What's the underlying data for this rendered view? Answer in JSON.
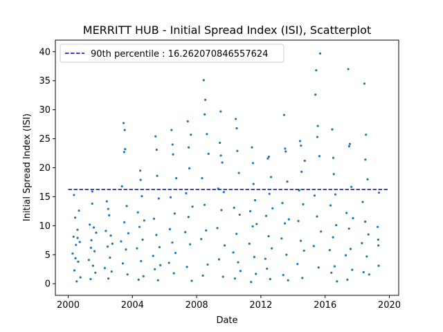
{
  "chart_data": {
    "type": "scatter",
    "title": "MERRITT HUB - Initial Spread Index (ISI), Scatterplot",
    "xlabel": "Date",
    "ylabel": "Initial Spread Index (ISI)",
    "xlim": [
      "1999-03-15",
      "2020-08-01"
    ],
    "ylim": [
      -2,
      42
    ],
    "xticks": [
      "2000",
      "2004",
      "2008",
      "2012",
      "2016",
      "2020"
    ],
    "yticks": [
      "0",
      "5",
      "10",
      "15",
      "20",
      "25",
      "30",
      "35",
      "40"
    ],
    "marker_color": "#1f77b4",
    "grid": false,
    "legend": {
      "location": "upper left",
      "entries": [
        {
          "label": "90th percentile : 16.262070846557624",
          "style": "dashed",
          "color": "#0000cc"
        }
      ]
    },
    "reference_line": {
      "name": "90th percentile : 16.262070846557624",
      "y": 16.262070846557624,
      "x_start": "2000-01-01",
      "x_end": "2019-12-31"
    },
    "series": [
      {
        "points": [
          [
            "2000-04-10",
            5.2
          ],
          [
            "2000-05-02",
            8.1
          ],
          [
            "2000-05-20",
            2.3
          ],
          [
            "2000-06-08",
            11.4
          ],
          [
            "2000-06-25",
            6.7
          ],
          [
            "2000-07-12",
            0.4
          ],
          [
            "2000-07-30",
            9.3
          ],
          [
            "2000-08-15",
            3.8
          ],
          [
            "2000-09-02",
            12.6
          ],
          [
            "2000-09-20",
            7.2
          ],
          [
            "2000-10-05",
            1.1
          ],
          [
            "2000-05-12",
            15.3
          ],
          [
            "2000-06-15",
            4.4
          ],
          [
            "2000-08-02",
            7.9
          ],
          [
            "2001-04-15",
            4.1
          ],
          [
            "2001-05-05",
            10.2
          ],
          [
            "2001-05-25",
            0.8
          ],
          [
            "2001-06-12",
            7.5
          ],
          [
            "2001-06-30",
            13.8
          ],
          [
            "2001-07-18",
            3.1
          ],
          [
            "2001-08-05",
            9.7
          ],
          [
            "2001-08-22",
            5.6
          ],
          [
            "2001-09-10",
            1.9
          ],
          [
            "2001-09-28",
            8.8
          ],
          [
            "2001-07-01",
            15.9
          ],
          [
            "2001-06-01",
            6.2
          ],
          [
            "2002-04-12",
            2.7
          ],
          [
            "2002-05-06",
            9.1
          ],
          [
            "2002-05-28",
            14.2
          ],
          [
            "2002-06-15",
            6.4
          ],
          [
            "2002-07-03",
            0.9
          ],
          [
            "2002-07-21",
            11.8
          ],
          [
            "2002-08-08",
            4.5
          ],
          [
            "2002-08-26",
            8.3
          ],
          [
            "2002-09-14",
            2.1
          ],
          [
            "2002-10-01",
            6.9
          ],
          [
            "2002-06-28",
            12.9
          ],
          [
            "2003-04-18",
            7.3
          ],
          [
            "2003-05-08",
            16.8
          ],
          [
            "2003-05-27",
            3.5
          ],
          [
            "2003-06-14",
            27.7
          ],
          [
            "2003-07-01",
            10.6
          ],
          [
            "2003-07-19",
            23.2
          ],
          [
            "2003-08-06",
            5.9
          ],
          [
            "2003-08-24",
            13.4
          ],
          [
            "2003-09-11",
            1.6
          ],
          [
            "2003-09-29",
            8.7
          ],
          [
            "2003-06-25",
            22.7
          ],
          [
            "2003-07-10",
            26.5
          ],
          [
            "2004-04-14",
            6.1
          ],
          [
            "2004-05-03",
            12.3
          ],
          [
            "2004-05-21",
            0.7
          ],
          [
            "2004-06-09",
            9.8
          ],
          [
            "2004-06-27",
            19.5
          ],
          [
            "2004-07-15",
            3.9
          ],
          [
            "2004-08-02",
            15.1
          ],
          [
            "2004-08-20",
            7.6
          ],
          [
            "2004-09-07",
            1.3
          ],
          [
            "2004-09-25",
            10.9
          ],
          [
            "2004-07-05",
            17.9
          ],
          [
            "2005-04-16",
            4.8
          ],
          [
            "2005-05-05",
            11.2
          ],
          [
            "2005-05-24",
            2.5
          ],
          [
            "2005-06-11",
            25.4
          ],
          [
            "2005-06-29",
            8.4
          ],
          [
            "2005-07-17",
            18.6
          ],
          [
            "2005-08-04",
            0.6
          ],
          [
            "2005-08-22",
            14.7
          ],
          [
            "2005-09-09",
            6.3
          ],
          [
            "2005-09-27",
            3.2
          ],
          [
            "2005-07-05",
            23.1
          ],
          [
            "2006-04-13",
            3.6
          ],
          [
            "2006-05-02",
            9.4
          ],
          [
            "2006-05-20",
            14.9
          ],
          [
            "2006-06-08",
            26.5
          ],
          [
            "2006-06-26",
            7.1
          ],
          [
            "2006-07-14",
            22.3
          ],
          [
            "2006-08-01",
            1.8
          ],
          [
            "2006-08-19",
            12.1
          ],
          [
            "2006-09-06",
            5.3
          ],
          [
            "2006-09-24",
            18.2
          ],
          [
            "2006-07-01",
            24.0
          ],
          [
            "2007-04-17",
            8.9
          ],
          [
            "2007-05-06",
            15.6
          ],
          [
            "2007-05-25",
            2.9
          ],
          [
            "2007-06-12",
            28.0
          ],
          [
            "2007-06-30",
            11.5
          ],
          [
            "2007-07-18",
            19.9
          ],
          [
            "2007-08-05",
            6.8
          ],
          [
            "2007-08-23",
            25.7
          ],
          [
            "2007-09-10",
            0.5
          ],
          [
            "2007-09-28",
            13.3
          ],
          [
            "2007-07-05",
            23.5
          ],
          [
            "2008-04-14",
            7.7
          ],
          [
            "2008-05-03",
            18.2
          ],
          [
            "2008-05-22",
            1.4
          ],
          [
            "2008-06-10",
            35.1
          ],
          [
            "2008-06-28",
            13.6
          ],
          [
            "2008-07-16",
            31.7
          ],
          [
            "2008-08-03",
            9.2
          ],
          [
            "2008-08-21",
            25.8
          ],
          [
            "2008-09-08",
            3.3
          ],
          [
            "2008-09-26",
            22.4
          ],
          [
            "2008-07-01",
            29.2
          ],
          [
            "2009-04-16",
            9.6
          ],
          [
            "2009-05-05",
            16.4
          ],
          [
            "2009-05-24",
            4.2
          ],
          [
            "2009-06-12",
            24.3
          ],
          [
            "2009-06-30",
            29.7
          ],
          [
            "2009-07-18",
            12.7
          ],
          [
            "2009-08-05",
            20.9
          ],
          [
            "2009-08-23",
            1.2
          ],
          [
            "2009-09-10",
            15.8
          ],
          [
            "2009-09-28",
            6.6
          ],
          [
            "2009-07-05",
            22.1
          ],
          [
            "2010-04-13",
            5.4
          ],
          [
            "2010-05-02",
            13.1
          ],
          [
            "2010-05-20",
            0.9
          ],
          [
            "2010-06-08",
            28.4
          ],
          [
            "2010-06-26",
            8.6
          ],
          [
            "2010-07-14",
            22.9
          ],
          [
            "2010-08-01",
            3.7
          ],
          [
            "2010-08-19",
            19.1
          ],
          [
            "2010-09-06",
            11.9
          ],
          [
            "2010-09-24",
            2.2
          ],
          [
            "2010-07-01",
            26.8
          ],
          [
            "2011-04-15",
            6.9
          ],
          [
            "2011-05-04",
            12.5
          ],
          [
            "2011-05-23",
            0.3
          ],
          [
            "2011-06-11",
            23.5
          ],
          [
            "2011-06-29",
            9.9
          ],
          [
            "2011-07-17",
            17.2
          ],
          [
            "2011-08-04",
            4.6
          ],
          [
            "2011-08-22",
            14.4
          ],
          [
            "2011-09-09",
            1.7
          ],
          [
            "2011-09-27",
            10.3
          ],
          [
            "2011-07-05",
            20.8
          ],
          [
            "2012-04-12",
            4.3
          ],
          [
            "2012-05-01",
            11.7
          ],
          [
            "2012-05-19",
            2.6
          ],
          [
            "2012-06-07",
            21.6
          ],
          [
            "2012-06-25",
            8.2
          ],
          [
            "2012-07-13",
            15.5
          ],
          [
            "2012-07-31",
            0.8
          ],
          [
            "2012-08-18",
            18.4
          ],
          [
            "2012-09-05",
            6.1
          ],
          [
            "2012-09-23",
            13.0
          ],
          [
            "2012-07-01",
            21.9
          ],
          [
            "2013-04-16",
            7.8
          ],
          [
            "2013-05-05",
            13.9
          ],
          [
            "2013-05-24",
            1.5
          ],
          [
            "2013-06-12",
            29.1
          ],
          [
            "2013-06-30",
            10.4
          ],
          [
            "2013-07-18",
            22.8
          ],
          [
            "2013-08-05",
            5.0
          ],
          [
            "2013-08-23",
            17.6
          ],
          [
            "2013-09-10",
            0.6
          ],
          [
            "2013-09-28",
            11.1
          ],
          [
            "2013-07-05",
            23.3
          ],
          [
            "2014-04-13",
            3.4
          ],
          [
            "2014-05-02",
            10.8
          ],
          [
            "2014-05-21",
            16.1
          ],
          [
            "2014-06-09",
            24.6
          ],
          [
            "2014-06-27",
            7.4
          ],
          [
            "2014-07-15",
            19.3
          ],
          [
            "2014-08-02",
            1.0
          ],
          [
            "2014-08-20",
            13.7
          ],
          [
            "2014-09-07",
            5.7
          ],
          [
            "2014-09-25",
            21.2
          ],
          [
            "2014-07-01",
            23.8
          ],
          [
            "2015-04-18",
            6.5
          ],
          [
            "2015-05-07",
            15.2
          ],
          [
            "2015-05-26",
            32.6
          ],
          [
            "2015-06-13",
            36.8
          ],
          [
            "2015-07-01",
            11.6
          ],
          [
            "2015-07-19",
            27.2
          ],
          [
            "2015-08-06",
            2.8
          ],
          [
            "2015-08-24",
            22.0
          ],
          [
            "2015-09-11",
            39.7
          ],
          [
            "2015-09-29",
            9.0
          ],
          [
            "2015-07-08",
            25.3
          ],
          [
            "2016-04-15",
            5.8
          ],
          [
            "2016-05-04",
            13.5
          ],
          [
            "2016-05-23",
            1.9
          ],
          [
            "2016-06-11",
            26.6
          ],
          [
            "2016-06-29",
            8.0
          ],
          [
            "2016-07-17",
            18.9
          ],
          [
            "2016-08-04",
            3.0
          ],
          [
            "2016-08-22",
            15.4
          ],
          [
            "2016-09-09",
            10.1
          ],
          [
            "2016-09-27",
            0.4
          ],
          [
            "2016-07-05",
            21.7
          ],
          [
            "2017-04-14",
            4.9
          ],
          [
            "2017-05-03",
            12.2
          ],
          [
            "2017-05-22",
            0.7
          ],
          [
            "2017-06-10",
            37.0
          ],
          [
            "2017-06-28",
            9.5
          ],
          [
            "2017-07-16",
            24.1
          ],
          [
            "2017-08-03",
            6.0
          ],
          [
            "2017-08-21",
            16.7
          ],
          [
            "2017-09-08",
            2.4
          ],
          [
            "2017-09-26",
            11.3
          ],
          [
            "2017-07-01",
            23.7
          ],
          [
            "2018-04-17",
            7.0
          ],
          [
            "2018-05-06",
            14.1
          ],
          [
            "2018-05-25",
            2.0
          ],
          [
            "2018-06-13",
            34.5
          ],
          [
            "2018-07-01",
            10.7
          ],
          [
            "2018-07-19",
            25.7
          ],
          [
            "2018-08-06",
            4.7
          ],
          [
            "2018-08-24",
            18.0
          ],
          [
            "2018-09-11",
            8.5
          ],
          [
            "2018-09-29",
            1.6
          ],
          [
            "2018-07-05",
            21.4
          ],
          [
            "2019-04-10",
            9.8
          ],
          [
            "2019-04-22",
            7.6
          ],
          [
            "2019-05-04",
            3.1
          ],
          [
            "2019-04-28",
            6.6
          ],
          [
            "2019-05-10",
            15.7
          ]
        ]
      }
    ]
  }
}
